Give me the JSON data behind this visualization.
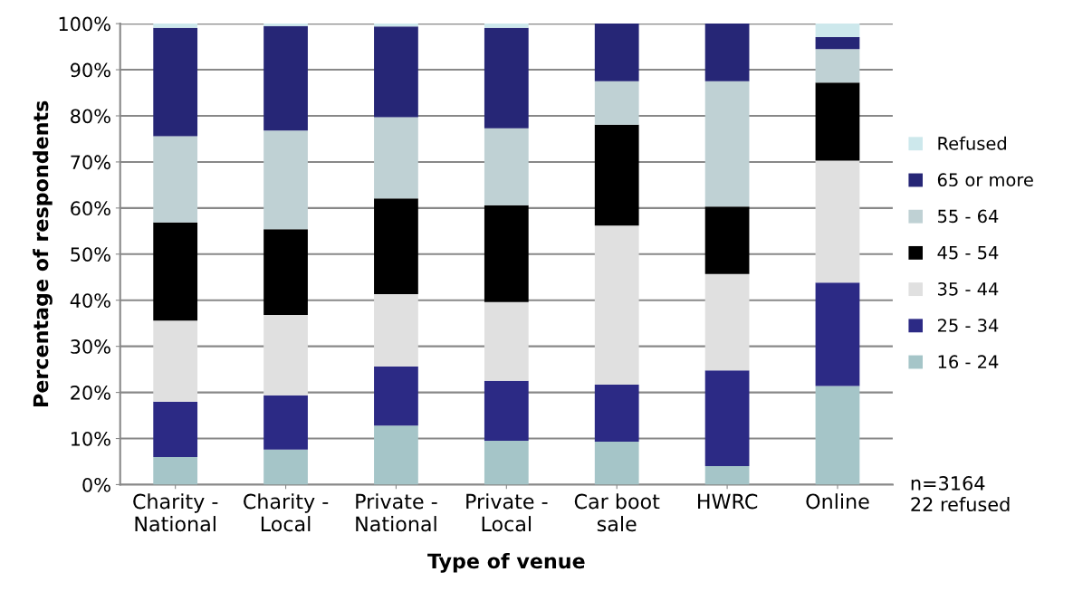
{
  "chart_data": {
    "type": "bar",
    "stacked": true,
    "xlabel": "Type of venue",
    "ylabel": "Percentage of respondents",
    "categories": [
      "Charity -\nNational",
      "Charity -\nLocal",
      "Private -\nNational",
      "Private -\nLocal",
      "Car boot\nsale",
      "HWRC",
      "Online"
    ],
    "series": [
      {
        "name": "16 - 24",
        "color": "#a5c5c8",
        "values": [
          6.0,
          7.6,
          12.8,
          9.5,
          9.3,
          4.0,
          21.4
        ]
      },
      {
        "name": "25 - 34",
        "color": "#2c2a85",
        "values": [
          12.0,
          11.8,
          12.8,
          13.0,
          12.4,
          20.8,
          22.4
        ]
      },
      {
        "name": "35 - 44",
        "color": "#e0e0e0",
        "values": [
          17.6,
          17.4,
          15.7,
          17.1,
          34.5,
          20.9,
          26.5
        ]
      },
      {
        "name": "45 - 54",
        "color": "#000000",
        "values": [
          21.3,
          18.6,
          20.8,
          21.0,
          21.9,
          14.6,
          16.9
        ]
      },
      {
        "name": "55 - 64",
        "color": "#bfd1d4",
        "values": [
          18.7,
          21.4,
          17.6,
          16.7,
          9.4,
          27.2,
          7.3
        ]
      },
      {
        "name": "65 or more",
        "color": "#262676",
        "values": [
          23.5,
          22.7,
          19.7,
          21.8,
          12.5,
          12.5,
          2.6
        ]
      },
      {
        "name": "Refused",
        "color": "#cde8ec",
        "values": [
          0.9,
          0.5,
          0.6,
          0.9,
          0,
          0,
          2.9
        ]
      }
    ],
    "ylim": [
      0,
      100
    ],
    "yticks": [
      {
        "value": 0,
        "label": "0%"
      },
      {
        "value": 10,
        "label": "10%"
      },
      {
        "value": 20,
        "label": "20%"
      },
      {
        "value": 30,
        "label": "30%"
      },
      {
        "value": 40,
        "label": "40%"
      },
      {
        "value": 50,
        "label": "50%"
      },
      {
        "value": 60,
        "label": "60%"
      },
      {
        "value": 70,
        "label": "70%"
      },
      {
        "value": 80,
        "label": "80%"
      },
      {
        "value": 90,
        "label": "90%"
      },
      {
        "value": 100,
        "label": "100%"
      }
    ],
    "grid": "y",
    "legend": "right",
    "annotations": [
      "n=3164\n22 refused"
    ]
  }
}
